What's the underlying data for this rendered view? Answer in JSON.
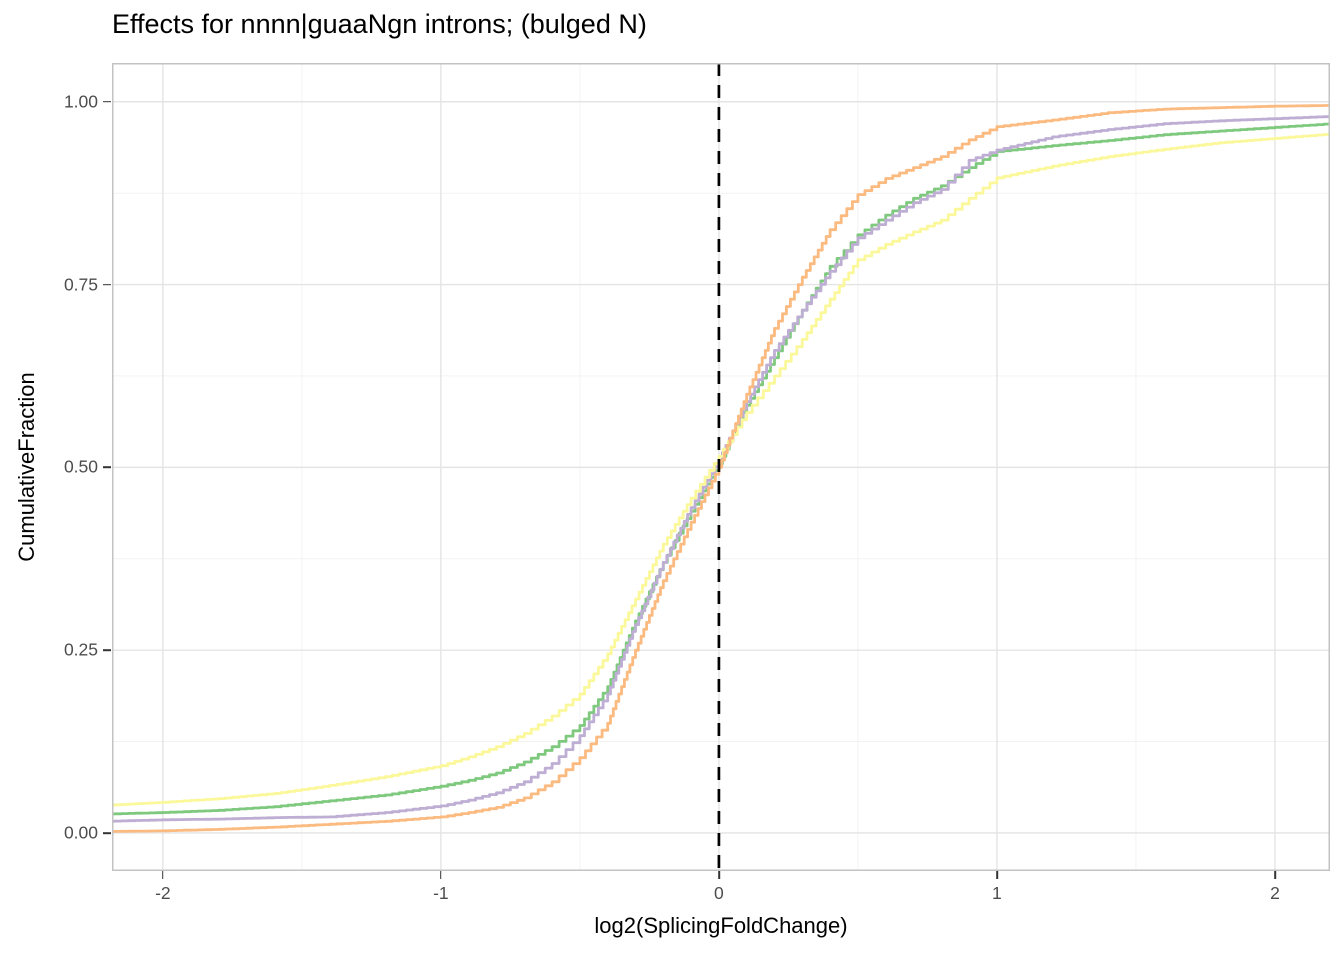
{
  "chart_data": {
    "type": "line",
    "subtype": "ecdf",
    "title": "Effects for nnnn|guaaNgn introns; (bulged N)",
    "xlabel": "log2(SplicingFoldChange)",
    "ylabel": "CumulativeFraction",
    "xlim": [
      -2.183,
      2.198
    ],
    "ylim": [
      -0.052,
      1.053
    ],
    "grid": true,
    "legend_position": "none",
    "x_ticks": {
      "values": [
        -2,
        -1,
        0,
        1,
        2
      ],
      "labels": [
        "-2",
        "-1",
        "0",
        "1",
        "2"
      ]
    },
    "y_ticks": {
      "values": [
        0,
        0.25,
        0.5,
        0.75,
        1.0
      ],
      "labels": [
        "0.00",
        "0.25",
        "0.50",
        "0.75",
        "1.00"
      ]
    },
    "x_minor": [
      -1.5,
      -0.5,
      0.5,
      1.5
    ],
    "y_minor": [
      0.125,
      0.375,
      0.625,
      0.875
    ],
    "vline": {
      "x": 0,
      "style": "dashed",
      "color": "#000000",
      "width": 2.7,
      "dash": "13 9"
    },
    "theme": {
      "background": "#FFFFFF",
      "panel_background": "#FFFFFF",
      "panel_border": "#C3C3C3",
      "grid_major": "#E4E4E4",
      "grid_minor": "#F1F1F1",
      "tick_label_color": "#4D4D4D",
      "tick_mark_color": "#333333",
      "text_color": "#000000",
      "line_width": 2.8
    },
    "series": [
      {
        "name": "green-curve",
        "color": "#7FC97F",
        "points": [
          [
            -2.2,
            0.026
          ],
          [
            -2,
            0.028
          ],
          [
            -1.8,
            0.031
          ],
          [
            -1.6,
            0.036
          ],
          [
            -1.4,
            0.044
          ],
          [
            -1.2,
            0.052
          ],
          [
            -1,
            0.064
          ],
          [
            -0.9,
            0.072
          ],
          [
            -0.8,
            0.082
          ],
          [
            -0.7,
            0.097
          ],
          [
            -0.6,
            0.118
          ],
          [
            -0.5,
            0.147
          ],
          [
            -0.4,
            0.2
          ],
          [
            -0.3,
            0.29
          ],
          [
            -0.2,
            0.37
          ],
          [
            -0.1,
            0.44
          ],
          [
            0,
            0.505
          ],
          [
            0.1,
            0.585
          ],
          [
            0.2,
            0.65
          ],
          [
            0.3,
            0.715
          ],
          [
            0.4,
            0.775
          ],
          [
            0.5,
            0.818
          ],
          [
            0.6,
            0.845
          ],
          [
            0.7,
            0.868
          ],
          [
            0.8,
            0.885
          ],
          [
            0.9,
            0.91
          ],
          [
            1,
            0.932
          ],
          [
            1.2,
            0.94
          ],
          [
            1.4,
            0.947
          ],
          [
            1.6,
            0.955
          ],
          [
            1.8,
            0.96
          ],
          [
            2,
            0.965
          ],
          [
            2.2,
            0.97
          ]
        ]
      },
      {
        "name": "purple-curve",
        "color": "#BEAED4",
        "points": [
          [
            -2.2,
            0.016
          ],
          [
            -2,
            0.018
          ],
          [
            -1.8,
            0.019
          ],
          [
            -1.6,
            0.021
          ],
          [
            -1.4,
            0.022
          ],
          [
            -1.2,
            0.028
          ],
          [
            -1,
            0.037
          ],
          [
            -0.9,
            0.045
          ],
          [
            -0.8,
            0.055
          ],
          [
            -0.7,
            0.07
          ],
          [
            -0.6,
            0.095
          ],
          [
            -0.5,
            0.133
          ],
          [
            -0.4,
            0.19
          ],
          [
            -0.3,
            0.285
          ],
          [
            -0.2,
            0.37
          ],
          [
            -0.1,
            0.445
          ],
          [
            0,
            0.51
          ],
          [
            0.1,
            0.59
          ],
          [
            0.2,
            0.66
          ],
          [
            0.3,
            0.715
          ],
          [
            0.4,
            0.768
          ],
          [
            0.5,
            0.814
          ],
          [
            0.6,
            0.838
          ],
          [
            0.7,
            0.862
          ],
          [
            0.8,
            0.88
          ],
          [
            0.9,
            0.92
          ],
          [
            1,
            0.934
          ],
          [
            1.2,
            0.952
          ],
          [
            1.4,
            0.962
          ],
          [
            1.6,
            0.97
          ],
          [
            1.8,
            0.974
          ],
          [
            2,
            0.977
          ],
          [
            2.2,
            0.98
          ]
        ]
      },
      {
        "name": "yellow-curve",
        "color": "#FBF89B",
        "points": [
          [
            -2.2,
            0.038
          ],
          [
            -2,
            0.042
          ],
          [
            -1.8,
            0.047
          ],
          [
            -1.6,
            0.054
          ],
          [
            -1.4,
            0.065
          ],
          [
            -1.2,
            0.077
          ],
          [
            -1,
            0.092
          ],
          [
            -0.9,
            0.104
          ],
          [
            -0.8,
            0.118
          ],
          [
            -0.7,
            0.136
          ],
          [
            -0.6,
            0.16
          ],
          [
            -0.5,
            0.19
          ],
          [
            -0.4,
            0.245
          ],
          [
            -0.3,
            0.32
          ],
          [
            -0.2,
            0.395
          ],
          [
            -0.1,
            0.458
          ],
          [
            0,
            0.515
          ],
          [
            0.1,
            0.575
          ],
          [
            0.2,
            0.625
          ],
          [
            0.3,
            0.675
          ],
          [
            0.4,
            0.73
          ],
          [
            0.5,
            0.784
          ],
          [
            0.6,
            0.805
          ],
          [
            0.7,
            0.822
          ],
          [
            0.8,
            0.838
          ],
          [
            0.9,
            0.868
          ],
          [
            1,
            0.896
          ],
          [
            1.2,
            0.912
          ],
          [
            1.4,
            0.925
          ],
          [
            1.6,
            0.935
          ],
          [
            1.8,
            0.944
          ],
          [
            2,
            0.95
          ],
          [
            2.2,
            0.956
          ]
        ]
      },
      {
        "name": "orange-curve",
        "color": "#FBBA80",
        "points": [
          [
            -2.2,
            0.002
          ],
          [
            -2,
            0.003
          ],
          [
            -1.8,
            0.005
          ],
          [
            -1.6,
            0.008
          ],
          [
            -1.4,
            0.012
          ],
          [
            -1.2,
            0.016
          ],
          [
            -1,
            0.022
          ],
          [
            -0.9,
            0.028
          ],
          [
            -0.8,
            0.035
          ],
          [
            -0.7,
            0.048
          ],
          [
            -0.6,
            0.07
          ],
          [
            -0.5,
            0.103
          ],
          [
            -0.4,
            0.15
          ],
          [
            -0.3,
            0.25
          ],
          [
            -0.2,
            0.345
          ],
          [
            -0.1,
            0.425
          ],
          [
            0,
            0.5
          ],
          [
            0.1,
            0.6
          ],
          [
            0.2,
            0.69
          ],
          [
            0.3,
            0.76
          ],
          [
            0.4,
            0.825
          ],
          [
            0.5,
            0.873
          ],
          [
            0.6,
            0.895
          ],
          [
            0.7,
            0.91
          ],
          [
            0.8,
            0.925
          ],
          [
            0.9,
            0.948
          ],
          [
            1,
            0.966
          ],
          [
            1.2,
            0.975
          ],
          [
            1.4,
            0.985
          ],
          [
            1.6,
            0.99
          ],
          [
            1.8,
            0.992
          ],
          [
            2,
            0.994
          ],
          [
            2.2,
            0.995
          ]
        ]
      }
    ]
  }
}
